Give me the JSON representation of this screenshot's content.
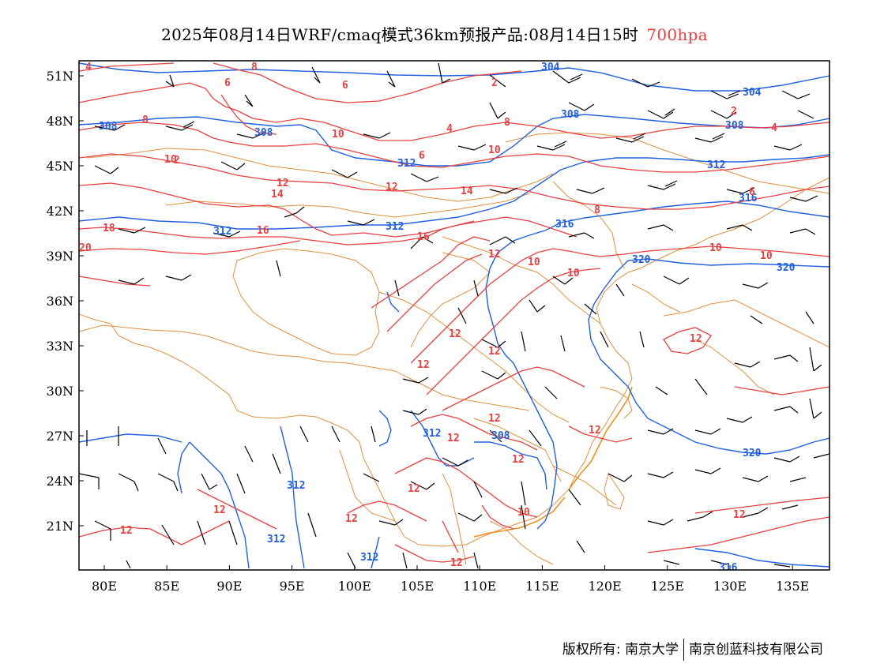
{
  "title": {
    "main": "2025年08月14日WRF/cmaq模式36km预报产品:08月14日15时",
    "level": "700hpa"
  },
  "axes": {
    "lon_labels": [
      "80E",
      "85E",
      "90E",
      "95E",
      "100E",
      "105E",
      "110E",
      "115E",
      "120E",
      "125E",
      "130E",
      "135E"
    ],
    "lat_labels": [
      "51N",
      "48N",
      "45N",
      "42N",
      "39N",
      "36N",
      "33N",
      "30N",
      "27N",
      "24N",
      "21N"
    ]
  },
  "colors": {
    "height_contour": "#2060e0",
    "temperature_contour": "#e84040",
    "border": "#e09040",
    "wind_barb": "#000000"
  },
  "height_labels": [
    "304",
    "304",
    "308",
    "308",
    "308",
    "308",
    "312",
    "312",
    "316",
    "316",
    "320",
    "320",
    "320",
    "312",
    "312",
    "312",
    "312",
    "308",
    "316"
  ],
  "temp_labels": [
    "4",
    "8",
    "6",
    "6",
    "2",
    "4",
    "8",
    "10",
    "8",
    "10",
    "2",
    "4",
    "10",
    "6",
    "12",
    "14",
    "12",
    "14",
    "6",
    "8",
    "16",
    "18",
    "20",
    "16",
    "10",
    "10",
    "12",
    "12",
    "12",
    "12",
    "12",
    "12",
    "12",
    "12",
    "12",
    "12",
    "12",
    "12",
    "12",
    "10",
    "12",
    "12"
  ],
  "footer": {
    "left": "版权所有: 南京大学",
    "right": "南京创蓝科技有限公司"
  }
}
